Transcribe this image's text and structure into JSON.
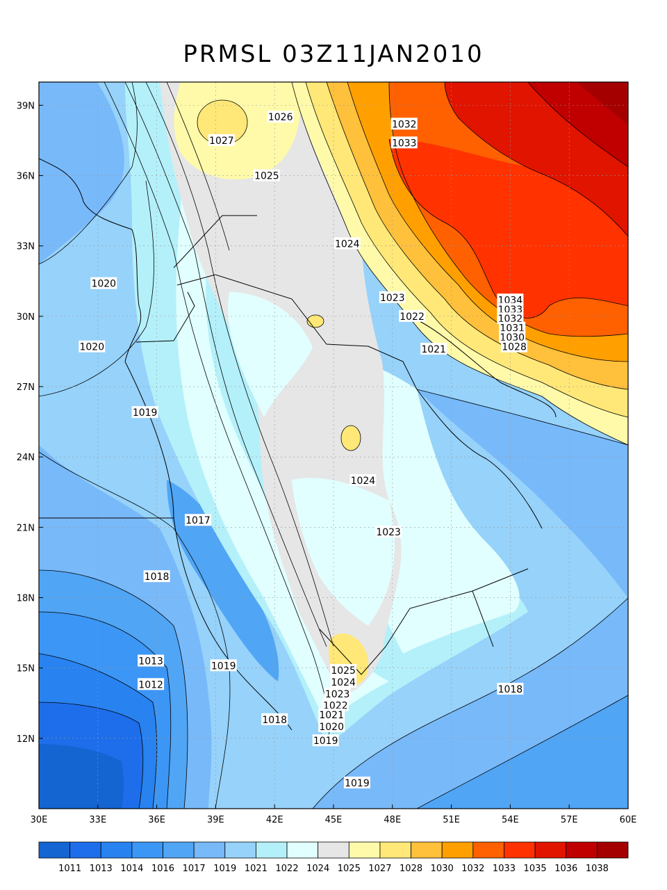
{
  "title": "PRMSL 03Z11JAN2010",
  "map": {
    "lon_range": [
      30,
      60
    ],
    "lat_range": [
      9,
      39
    ],
    "x_ticks": [
      "30E",
      "33E",
      "36E",
      "39E",
      "42E",
      "45E",
      "48E",
      "51E",
      "54E",
      "57E",
      "60E"
    ],
    "y_ticks": [
      "12N",
      "15N",
      "18N",
      "21N",
      "24N",
      "27N",
      "30N",
      "33N",
      "36N",
      "39N"
    ],
    "grid": true
  },
  "contour_labels": [
    {
      "text": "1027",
      "lon": 39.3,
      "lat": 37.5
    },
    {
      "text": "1026",
      "lon": 42.3,
      "lat": 38.5
    },
    {
      "text": "1025",
      "lon": 41.6,
      "lat": 36.0
    },
    {
      "text": "1032",
      "lon": 48.6,
      "lat": 38.2
    },
    {
      "text": "1033",
      "lon": 48.6,
      "lat": 37.4
    },
    {
      "text": "1024",
      "lon": 45.7,
      "lat": 33.1
    },
    {
      "text": "1020",
      "lon": 33.3,
      "lat": 31.4
    },
    {
      "text": "1023",
      "lon": 48.0,
      "lat": 30.8
    },
    {
      "text": "1022",
      "lon": 49.0,
      "lat": 30.0
    },
    {
      "text": "1034",
      "lon": 54.0,
      "lat": 30.7
    },
    {
      "text": "1033",
      "lon": 54.0,
      "lat": 30.3
    },
    {
      "text": "1032",
      "lon": 54.0,
      "lat": 29.9
    },
    {
      "text": "1031",
      "lon": 54.1,
      "lat": 29.5
    },
    {
      "text": "1030",
      "lon": 54.1,
      "lat": 29.1
    },
    {
      "text": "1028",
      "lon": 54.2,
      "lat": 28.7
    },
    {
      "text": "1020",
      "lon": 32.7,
      "lat": 28.7
    },
    {
      "text": "1021",
      "lon": 50.1,
      "lat": 28.6
    },
    {
      "text": "1019",
      "lon": 35.4,
      "lat": 25.9
    },
    {
      "text": "1024",
      "lon": 46.5,
      "lat": 23.0
    },
    {
      "text": "1017",
      "lon": 38.1,
      "lat": 21.3
    },
    {
      "text": "1023",
      "lon": 47.8,
      "lat": 20.8
    },
    {
      "text": "1018",
      "lon": 36.0,
      "lat": 18.9
    },
    {
      "text": "1013",
      "lon": 35.7,
      "lat": 15.3
    },
    {
      "text": "1019",
      "lon": 39.4,
      "lat": 15.1
    },
    {
      "text": "1012",
      "lon": 35.7,
      "lat": 14.3
    },
    {
      "text": "1025",
      "lon": 45.5,
      "lat": 14.9
    },
    {
      "text": "1024",
      "lon": 45.5,
      "lat": 14.4
    },
    {
      "text": "1018",
      "lon": 54.0,
      "lat": 14.1
    },
    {
      "text": "1023",
      "lon": 45.2,
      "lat": 13.9
    },
    {
      "text": "1022",
      "lon": 45.1,
      "lat": 13.4
    },
    {
      "text": "1021",
      "lon": 44.9,
      "lat": 13.0
    },
    {
      "text": "1020",
      "lon": 44.9,
      "lat": 12.5
    },
    {
      "text": "1018",
      "lon": 42.0,
      "lat": 12.8
    },
    {
      "text": "1019",
      "lon": 44.6,
      "lat": 11.9
    },
    {
      "text": "1019",
      "lon": 46.2,
      "lat": 10.1
    }
  ],
  "colorbar": {
    "colors": [
      "#1464d2",
      "#1e6eeb",
      "#2882f0",
      "#3c96f5",
      "#50a5f5",
      "#78b9fa",
      "#96d2fa",
      "#b4f0fa",
      "#e1ffff",
      "#e6e6e6",
      "#fffaaa",
      "#ffe878",
      "#ffc03c",
      "#ffa000",
      "#ff6000",
      "#ff3200",
      "#e11400",
      "#c00000",
      "#a50000"
    ],
    "labels": [
      "1011",
      "1013",
      "1014",
      "1016",
      "1017",
      "1019",
      "1021",
      "1022",
      "1024",
      "1025",
      "1027",
      "1028",
      "1030",
      "1032",
      "1033",
      "1035",
      "1036",
      "1038"
    ]
  }
}
